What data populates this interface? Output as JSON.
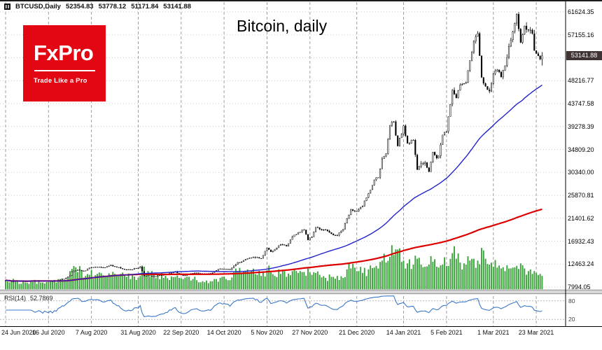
{
  "window": {
    "top_border_color": "#1c1c1c",
    "symbol_info": {
      "icon": "candlestick-chart-icon",
      "symbol": "BTCUSD,Daily",
      "open": "52354.83",
      "high": "53778.12",
      "low": "51171.84",
      "close": "53141.88"
    }
  },
  "logo": {
    "brand": "FxPro",
    "tagline": "Trade Like a Pro",
    "bg": "#e30613",
    "fg": "#ffffff"
  },
  "chart_title": "Bitcoin, daily",
  "price_axis": {
    "labels": [
      "61624.35",
      "57155.16",
      "52685.97",
      "48216.77",
      "43747.58",
      "39278.39",
      "34809.20",
      "30340.00",
      "25870.81",
      "21401.62",
      "16932.43",
      "12463.24",
      "7994.05"
    ],
    "current_price": "53141.88",
    "badge_bg": "#3f3333",
    "badge_fg": "#ffffff"
  },
  "rsi_panel": {
    "label": "RSI(14)",
    "value": "52.7869"
  },
  "chart_data": {
    "type": "candlestick",
    "symbol": "BTCUSD",
    "timeframe": "Daily",
    "title": "Bitcoin, daily",
    "price_range": [
      7994.05,
      61624.35
    ],
    "last_bar": {
      "open": 52354.83,
      "high": 53778.12,
      "low": 51171.84,
      "close": 53141.88
    },
    "x_ticks": [
      {
        "label": "24 Jun 2020",
        "day": 0
      },
      {
        "label": "16 Jul 2020",
        "day": 22
      },
      {
        "label": "7 Aug 2020",
        "day": 44
      },
      {
        "label": "31 Aug 2020",
        "day": 68
      },
      {
        "label": "22 Sep 2020",
        "day": 90
      },
      {
        "label": "14 Oct 2020",
        "day": 112
      },
      {
        "label": "5 Nov 2020",
        "day": 134
      },
      {
        "label": "27 Nov 2020",
        "day": 156
      },
      {
        "label": "21 Dec 2020",
        "day": 180
      },
      {
        "label": "14 Jan 2021",
        "day": 204
      },
      {
        "label": "5 Feb 2021",
        "day": 226
      },
      {
        "label": "1 Mar 2021",
        "day": 250
      },
      {
        "label": "23 Mar 2021",
        "day": 272
      }
    ],
    "points_format": [
      "day_index",
      "close",
      "relative_volume"
    ],
    "points": [
      [
        0,
        9300,
        12
      ],
      [
        3,
        9050,
        10
      ],
      [
        6,
        9150,
        10
      ],
      [
        10,
        9100,
        8
      ],
      [
        14,
        9250,
        9
      ],
      [
        18,
        9200,
        8
      ],
      [
        22,
        9100,
        9
      ],
      [
        26,
        9150,
        8
      ],
      [
        28,
        9400,
        14
      ],
      [
        30,
        9550,
        12
      ],
      [
        33,
        10250,
        30
      ],
      [
        34,
        10950,
        35
      ],
      [
        37,
        11350,
        28
      ],
      [
        39,
        11100,
        30
      ],
      [
        41,
        11200,
        20
      ],
      [
        43,
        11750,
        22
      ],
      [
        47,
        11900,
        24
      ],
      [
        51,
        11800,
        18
      ],
      [
        54,
        12250,
        22
      ],
      [
        57,
        11850,
        20
      ],
      [
        62,
        11350,
        18
      ],
      [
        68,
        11650,
        16
      ],
      [
        69,
        11950,
        20
      ],
      [
        71,
        10150,
        40
      ],
      [
        73,
        10250,
        30
      ],
      [
        76,
        10100,
        22
      ],
      [
        81,
        10350,
        16
      ],
      [
        87,
        11050,
        18
      ],
      [
        89,
        10450,
        16
      ],
      [
        91,
        10250,
        14
      ],
      [
        96,
        10700,
        14
      ],
      [
        98,
        10780,
        12
      ],
      [
        101,
        10550,
        10
      ],
      [
        105,
        10600,
        10
      ],
      [
        107,
        11050,
        14
      ],
      [
        110,
        11550,
        16
      ],
      [
        113,
        11500,
        14
      ],
      [
        115,
        11350,
        12
      ],
      [
        119,
        12800,
        30
      ],
      [
        121,
        12950,
        24
      ],
      [
        125,
        13650,
        26
      ],
      [
        129,
        13800,
        22
      ],
      [
        131,
        13550,
        20
      ],
      [
        134,
        15600,
        32
      ],
      [
        136,
        14850,
        28
      ],
      [
        138,
        15350,
        20
      ],
      [
        141,
        16300,
        24
      ],
      [
        144,
        15950,
        18
      ],
      [
        147,
        17800,
        30
      ],
      [
        150,
        18650,
        26
      ],
      [
        153,
        19150,
        28
      ],
      [
        155,
        17150,
        36
      ],
      [
        157,
        17750,
        22
      ],
      [
        159,
        19650,
        26
      ],
      [
        161,
        19250,
        22
      ],
      [
        164,
        19150,
        16
      ],
      [
        167,
        18350,
        18
      ],
      [
        170,
        18050,
        20
      ],
      [
        173,
        19250,
        16
      ],
      [
        175,
        21350,
        34
      ],
      [
        177,
        23100,
        36
      ],
      [
        180,
        22750,
        30
      ],
      [
        183,
        23750,
        26
      ],
      [
        186,
        26250,
        34
      ],
      [
        189,
        28900,
        38
      ],
      [
        191,
        29350,
        36
      ],
      [
        193,
        33000,
        55
      ],
      [
        195,
        34000,
        50
      ],
      [
        197,
        39450,
        65
      ],
      [
        199,
        40250,
        70
      ],
      [
        201,
        35450,
        85
      ],
      [
        204,
        39450,
        55
      ],
      [
        206,
        36000,
        48
      ],
      [
        209,
        36650,
        45
      ],
      [
        211,
        30850,
        60
      ],
      [
        213,
        32100,
        45
      ],
      [
        215,
        32250,
        40
      ],
      [
        217,
        30450,
        45
      ],
      [
        219,
        34300,
        52
      ],
      [
        221,
        33100,
        40
      ],
      [
        222,
        33550,
        38
      ],
      [
        224,
        37650,
        45
      ],
      [
        226,
        38300,
        42
      ],
      [
        229,
        46400,
        75
      ],
      [
        231,
        44850,
        60
      ],
      [
        233,
        47400,
        50
      ],
      [
        236,
        47900,
        45
      ],
      [
        238,
        52150,
        55
      ],
      [
        240,
        55900,
        60
      ],
      [
        242,
        57450,
        55
      ],
      [
        244,
        48850,
        90
      ],
      [
        246,
        47100,
        60
      ],
      [
        248,
        46150,
        45
      ],
      [
        250,
        49600,
        40
      ],
      [
        252,
        50350,
        38
      ],
      [
        254,
        48900,
        36
      ],
      [
        256,
        51150,
        30
      ],
      [
        258,
        54900,
        36
      ],
      [
        260,
        57800,
        38
      ],
      [
        262,
        61200,
        42
      ],
      [
        264,
        55650,
        48
      ],
      [
        266,
        58900,
        36
      ],
      [
        268,
        58050,
        30
      ],
      [
        270,
        57400,
        24
      ],
      [
        271,
        54100,
        30
      ],
      [
        272,
        53500,
        26
      ],
      [
        274,
        52400,
        24
      ],
      [
        275,
        53141.88,
        20
      ]
    ],
    "overlays": [
      {
        "name": "ma-fast",
        "type": "sma",
        "period": 65,
        "color": "#2222cc"
      },
      {
        "name": "ma-slow",
        "type": "sma",
        "period": 300,
        "color": "#dd0000"
      }
    ],
    "oscillator": {
      "name": "RSI",
      "period": 14,
      "value": 52.7869,
      "color": "#3c78c8",
      "levels": [
        80,
        20
      ]
    },
    "volume_color": "#3aa23a",
    "candle_color": "#000000",
    "grid": true
  }
}
